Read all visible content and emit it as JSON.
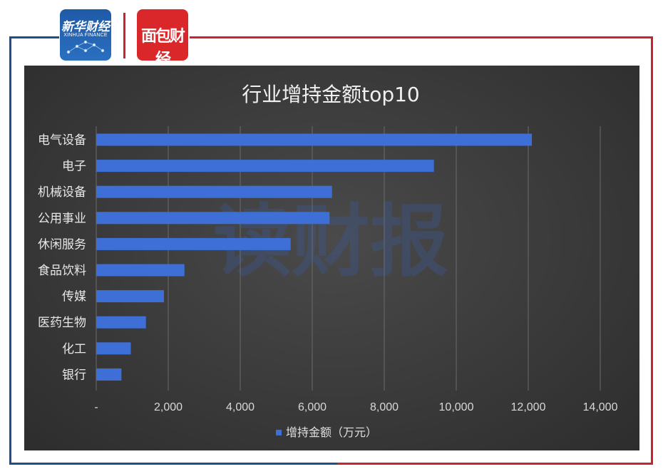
{
  "header": {
    "logo_left": {
      "line1": "新华财经",
      "line2": "XINHUA FINANCE"
    },
    "logo_right": {
      "text": "面包财经"
    }
  },
  "colors": {
    "frame_blue": "#1f4e8c",
    "frame_red": "#c8242c",
    "bar": "#3d6fd6",
    "panel": "#3a3a3a"
  },
  "watermark": "读财报",
  "chart_data": {
    "type": "bar",
    "orientation": "horizontal",
    "title": "行业增持金额top10",
    "categories": [
      "电气设备",
      "电子",
      "机械设备",
      "公用事业",
      "休闲服务",
      "食品饮料",
      "传媒",
      "医药生物",
      "化工",
      "银行"
    ],
    "series": [
      {
        "name": "增持金额（万元）",
        "values": [
          12100,
          9380,
          6550,
          6480,
          5400,
          2450,
          1880,
          1380,
          960,
          700
        ]
      }
    ],
    "xlim": [
      0,
      14000
    ],
    "x_ticks": [
      "-",
      "2,000",
      "4,000",
      "6,000",
      "8,000",
      "10,000",
      "12,000",
      "14,000"
    ],
    "grid": true,
    "legend_position": "bottom"
  }
}
